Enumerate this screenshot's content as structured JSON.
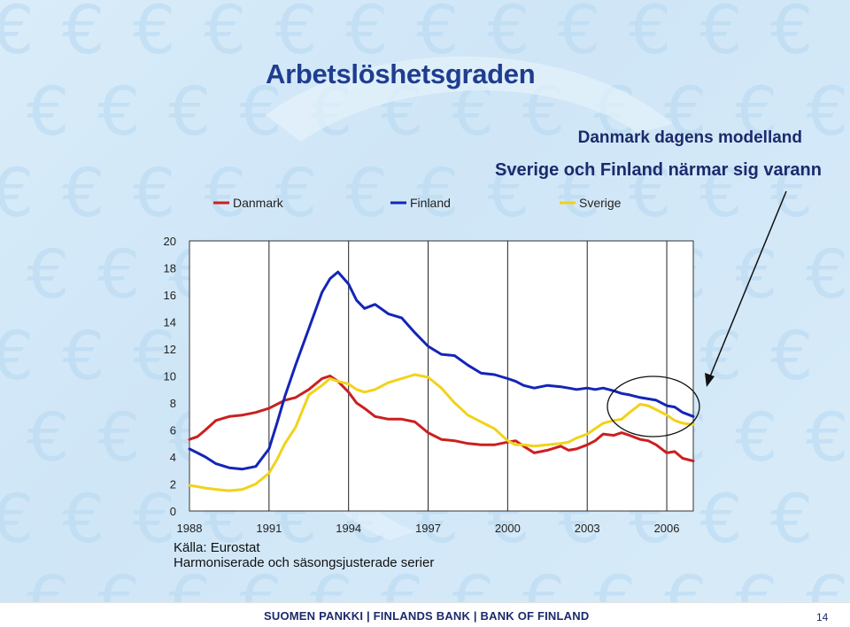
{
  "slide": {
    "title": "Arbetslöshetsgraden",
    "subtitle_1": "Danmark dagens modelland",
    "subtitle_2": "Sverige och Finland närmar sig varann",
    "source_1": "Källa: Eurostat",
    "source_2": "Harmoniserade och säsongsjusterade serier",
    "footer": "SUOMEN PANKKI | FINLANDS BANK | BANK OF FINLAND",
    "page_number": "14",
    "background_icon": "euro-sign-icon",
    "colors": {
      "title": "#1f3d8f",
      "background": "#d4e9f8",
      "euro_pattern": "#b7d8f1"
    }
  },
  "chart_data": {
    "type": "line",
    "x_tick_labels": [
      "1988",
      "1991",
      "1994",
      "1997",
      "2000",
      "2003",
      "2006"
    ],
    "x_ticks": [
      1988,
      1991,
      1994,
      1997,
      2000,
      2003,
      2006
    ],
    "xlim": [
      1988,
      2007
    ],
    "ylim": [
      0,
      20
    ],
    "y_tick_labels": [
      "0",
      "2",
      "4",
      "6",
      "8",
      "10",
      "12",
      "14",
      "16",
      "18",
      "20"
    ],
    "y_ticks": [
      0,
      2,
      4,
      6,
      8,
      10,
      12,
      14,
      16,
      18,
      20
    ],
    "grid": "vertical",
    "legend": "top",
    "annotation": "circle around the 2004–2007 Finland and Sverige values, with arrow from the subtitle",
    "series": [
      {
        "name": "Danmark",
        "color": "#cc1f1f",
        "x": [
          1988,
          1988.3,
          1988.6,
          1989,
          1989.5,
          1990,
          1990.5,
          1991,
          1991.3,
          1991.6,
          1992,
          1992.5,
          1993,
          1993.3,
          1993.6,
          1994,
          1994.3,
          1994.6,
          1995,
          1995.5,
          1996,
          1996.5,
          1997,
          1997.5,
          1998,
          1998.5,
          1999,
          1999.5,
          2000,
          2000.3,
          2000.6,
          2001,
          2001.5,
          2002,
          2002.3,
          2002.6,
          2003,
          2003.3,
          2003.6,
          2004,
          2004.3,
          2004.6,
          2005,
          2005.3,
          2005.6,
          2006,
          2006.3,
          2006.6,
          2007
        ],
        "y": [
          5.3,
          5.5,
          6.0,
          6.7,
          7.0,
          7.1,
          7.3,
          7.6,
          7.9,
          8.2,
          8.4,
          9.0,
          9.8,
          10.0,
          9.6,
          8.8,
          8.0,
          7.6,
          7.0,
          6.8,
          6.8,
          6.6,
          5.8,
          5.3,
          5.2,
          5.0,
          4.9,
          4.9,
          5.1,
          5.2,
          4.8,
          4.3,
          4.5,
          4.8,
          4.5,
          4.6,
          4.9,
          5.2,
          5.7,
          5.6,
          5.8,
          5.6,
          5.3,
          5.2,
          4.9,
          4.3,
          4.4,
          3.9,
          3.7
        ]
      },
      {
        "name": "Finland",
        "color": "#1425b8",
        "x": [
          1988,
          1988.3,
          1988.6,
          1989,
          1989.5,
          1990,
          1990.5,
          1991,
          1991.3,
          1991.6,
          1992,
          1992.5,
          1993,
          1993.3,
          1993.6,
          1994,
          1994.3,
          1994.6,
          1995,
          1995.5,
          1996,
          1996.5,
          1997,
          1997.5,
          1998,
          1998.5,
          1999,
          1999.5,
          2000,
          2000.3,
          2000.6,
          2001,
          2001.5,
          2002,
          2002.3,
          2002.6,
          2003,
          2003.3,
          2003.6,
          2004,
          2004.3,
          2004.6,
          2005,
          2005.3,
          2005.6,
          2006,
          2006.3,
          2006.6,
          2007
        ],
        "y": [
          4.6,
          4.3,
          4.0,
          3.5,
          3.2,
          3.1,
          3.3,
          4.6,
          6.5,
          8.5,
          10.8,
          13.5,
          16.2,
          17.2,
          17.7,
          16.8,
          15.6,
          15.0,
          15.3,
          14.6,
          14.3,
          13.2,
          12.2,
          11.6,
          11.5,
          10.8,
          10.2,
          10.1,
          9.8,
          9.6,
          9.3,
          9.1,
          9.3,
          9.2,
          9.1,
          9.0,
          9.1,
          9.0,
          9.1,
          8.9,
          8.7,
          8.6,
          8.4,
          8.3,
          8.2,
          7.8,
          7.7,
          7.3,
          7.0
        ]
      },
      {
        "name": "Sverige",
        "color": "#f2d21a",
        "x": [
          1988,
          1988.3,
          1988.6,
          1989,
          1989.5,
          1990,
          1990.5,
          1991,
          1991.3,
          1991.6,
          1992,
          1992.5,
          1993,
          1993.3,
          1993.6,
          1994,
          1994.3,
          1994.6,
          1995,
          1995.5,
          1996,
          1996.5,
          1997,
          1997.5,
          1998,
          1998.5,
          1999,
          1999.5,
          2000,
          2000.3,
          2000.6,
          2001,
          2001.5,
          2002,
          2002.3,
          2002.6,
          2003,
          2003.3,
          2003.6,
          2004,
          2004.3,
          2004.6,
          2005,
          2005.3,
          2005.6,
          2006,
          2006.3,
          2006.6,
          2007
        ],
        "y": [
          1.9,
          1.8,
          1.7,
          1.6,
          1.5,
          1.6,
          2.0,
          2.8,
          3.8,
          5.0,
          6.2,
          8.6,
          9.3,
          9.8,
          9.6,
          9.4,
          9.0,
          8.8,
          9.0,
          9.5,
          9.8,
          10.1,
          9.9,
          9.1,
          8.0,
          7.1,
          6.6,
          6.1,
          5.2,
          4.9,
          4.9,
          4.8,
          4.9,
          5.0,
          5.1,
          5.4,
          5.7,
          6.1,
          6.5,
          6.7,
          6.8,
          7.3,
          7.9,
          7.8,
          7.5,
          7.1,
          6.7,
          6.5,
          6.4
        ]
      }
    ]
  }
}
